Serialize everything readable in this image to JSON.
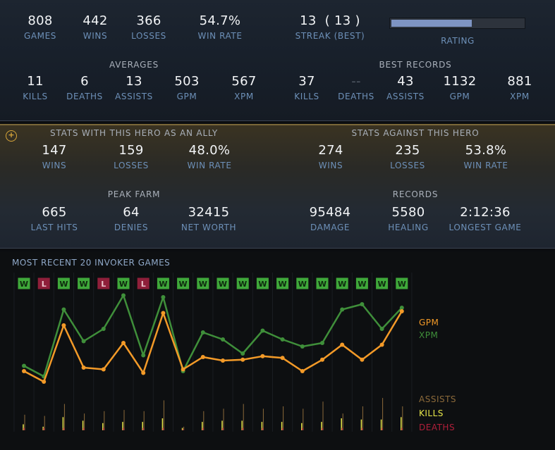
{
  "summary": {
    "games": {
      "value": "808",
      "label": "GAMES"
    },
    "wins": {
      "value": "442",
      "label": "WINS"
    },
    "losses": {
      "value": "366",
      "label": "LOSSES"
    },
    "win_rate": {
      "value": "54.7%",
      "label": "WIN RATE"
    },
    "streak": {
      "value": "13  ( 13 )",
      "label": "STREAK (BEST)"
    },
    "rating": {
      "label": "RATING",
      "fill_fraction": 0.61
    }
  },
  "averages": {
    "title": "AVERAGES",
    "items": [
      {
        "value": "11",
        "label": "KILLS"
      },
      {
        "value": "6",
        "label": "DEATHS"
      },
      {
        "value": "13",
        "label": "ASSISTS"
      },
      {
        "value": "503",
        "label": "GPM"
      },
      {
        "value": "567",
        "label": "XPM"
      }
    ]
  },
  "best_records": {
    "title": "BEST RECORDS",
    "items": [
      {
        "value": "37",
        "label": "KILLS"
      },
      {
        "value": "--",
        "label": "DEATHS"
      },
      {
        "value": "43",
        "label": "ASSISTS"
      },
      {
        "value": "1132",
        "label": "GPM"
      },
      {
        "value": "881",
        "label": "XPM"
      }
    ]
  },
  "ally": {
    "title": "STATS WITH THIS HERO AS AN ALLY",
    "items": [
      {
        "value": "147",
        "label": "WINS"
      },
      {
        "value": "159",
        "label": "LOSSES"
      },
      {
        "value": "48.0%",
        "label": "WIN RATE"
      }
    ]
  },
  "against": {
    "title": "STATS AGAINST THIS HERO",
    "items": [
      {
        "value": "274",
        "label": "WINS"
      },
      {
        "value": "235",
        "label": "LOSSES"
      },
      {
        "value": "53.8%",
        "label": "WIN RATE"
      }
    ]
  },
  "peak_farm": {
    "title": "PEAK FARM",
    "items": [
      {
        "value": "665",
        "label": "LAST HITS"
      },
      {
        "value": "64",
        "label": "DENIES"
      },
      {
        "value": "32415",
        "label": "NET WORTH"
      }
    ]
  },
  "records": {
    "title": "RECORDS",
    "items": [
      {
        "value": "95484",
        "label": "DAMAGE"
      },
      {
        "value": "5580",
        "label": "HEALING"
      },
      {
        "value": "2:12:36",
        "label": "LONGEST GAME"
      }
    ]
  },
  "recent": {
    "title": "MOST RECENT 20 INVOKER GAMES",
    "legend": {
      "gpm": "GPM",
      "xpm": "XPM",
      "assists": "ASSISTS",
      "kills": "KILLS",
      "deaths": "DEATHS"
    },
    "colors": {
      "gpm": "#f39a28",
      "xpm": "#3f8f3a",
      "assists": "#8c6a3a",
      "kills": "#e8e84a",
      "deaths": "#b01f3a",
      "win": "#3fa83a",
      "loss": "#8f1f3a"
    }
  },
  "chart_data": {
    "type": "line",
    "x": [
      1,
      2,
      3,
      4,
      5,
      6,
      7,
      8,
      9,
      10,
      11,
      12,
      13,
      14,
      15,
      16,
      17,
      18,
      19,
      20
    ],
    "results": [
      "W",
      "L",
      "W",
      "W",
      "L",
      "W",
      "L",
      "W",
      "W",
      "W",
      "W",
      "W",
      "W",
      "W",
      "W",
      "W",
      "W",
      "W",
      "W",
      "W"
    ],
    "series": [
      {
        "name": "GPM",
        "values": [
          460,
          400,
          720,
          480,
          470,
          620,
          450,
          790,
          470,
          540,
          520,
          525,
          545,
          535,
          460,
          525,
          610,
          525,
          610,
          800
        ]
      },
      {
        "name": "XPM",
        "values": [
          490,
          430,
          810,
          630,
          700,
          890,
          550,
          880,
          460,
          680,
          640,
          560,
          690,
          640,
          600,
          620,
          810,
          840,
          700,
          820
        ]
      },
      {
        "name": "ASSISTS",
        "values": [
          13,
          12,
          22,
          14,
          16,
          17,
          16,
          25,
          3,
          16,
          18,
          22,
          18,
          20,
          18,
          24,
          14,
          20,
          27,
          20
        ]
      },
      {
        "name": "KILLS",
        "values": [
          5,
          3,
          11,
          8,
          6,
          7,
          7,
          10,
          2,
          7,
          8,
          8,
          7,
          7,
          6,
          7,
          10,
          9,
          9,
          11
        ]
      },
      {
        "name": "DEATHS",
        "values": [
          2,
          2,
          2,
          2,
          2,
          2,
          2,
          2,
          1,
          2,
          2,
          2,
          2,
          2,
          2,
          2,
          2,
          2,
          2,
          2
        ]
      }
    ]
  }
}
